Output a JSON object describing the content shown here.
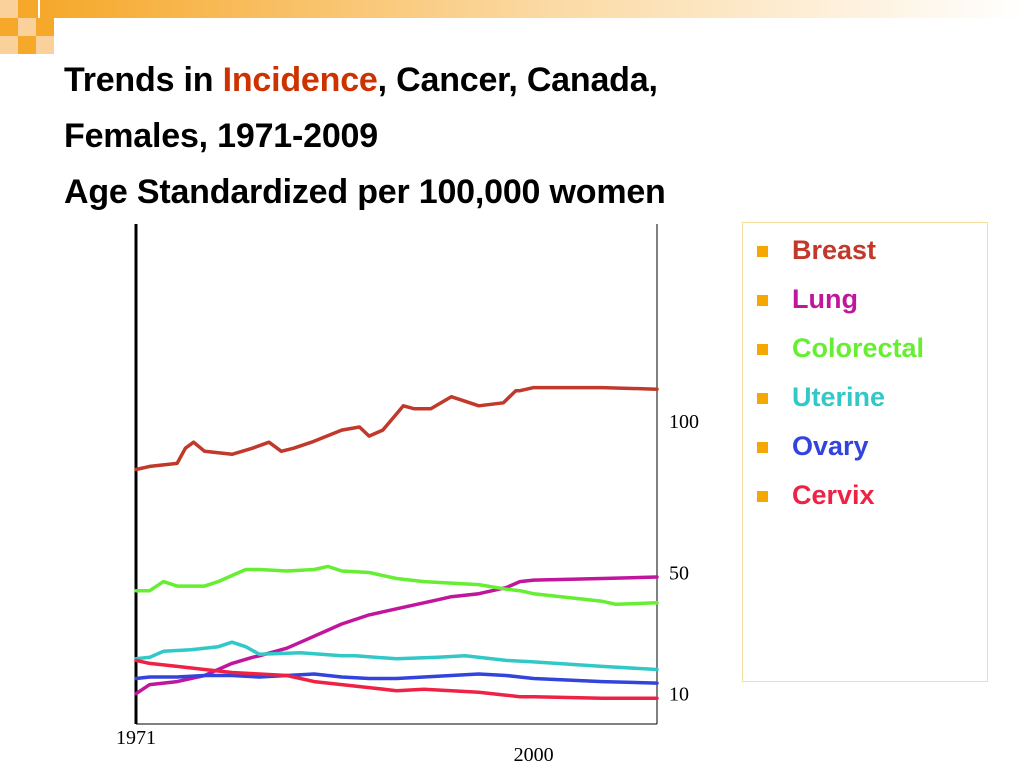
{
  "title": {
    "part1": "Trends in ",
    "highlight": "Incidence",
    "part2": ", Cancer, Canada,",
    "line2": "Females, 1971-2009",
    "line3": "Age Standardized per 100,000 women",
    "highlight_color": "#cc3300"
  },
  "legend": {
    "items": [
      {
        "label": "Breast",
        "color": "#c0392b"
      },
      {
        "label": "Lung",
        "color": "#c0169c"
      },
      {
        "label": "Colorectal",
        "color": "#66ee33"
      },
      {
        "label": "Uterine",
        "color": "#33c8c8"
      },
      {
        "label": "Ovary",
        "color": "#3344dd"
      },
      {
        "label": "Cervix",
        "color": "#ee2244"
      }
    ],
    "bullet_color": "#f5a800"
  },
  "chart_data": {
    "type": "line",
    "title": "",
    "xlabel": "",
    "ylabel": "",
    "xlim": [
      1971,
      2009
    ],
    "ylim": [
      0,
      165
    ],
    "x_tick_labels": [
      {
        "value": 1971,
        "label": "1971"
      },
      {
        "value": 2000,
        "label": "2000"
      }
    ],
    "y_tick_labels": [
      {
        "value": 10,
        "label": "10"
      },
      {
        "value": 50,
        "label": "50"
      },
      {
        "value": 100,
        "label": "100"
      }
    ],
    "grid": false,
    "legend_position": "right",
    "series": [
      {
        "name": "Breast",
        "color": "#c0392b",
        "x": [
          1971,
          1972,
          1974,
          1974.6,
          1975.2,
          1976,
          1978,
          1979.5,
          1980.7,
          1981.6,
          1982.5,
          1983.8,
          1986,
          1987.3,
          1988,
          1989,
          1990.5,
          1991.3,
          1992.5,
          1994,
          1996,
          1997.8,
          1998.7,
          1999,
          2000,
          2001,
          2005,
          2009
        ],
        "y": [
          84,
          85,
          86,
          91,
          93,
          90,
          89,
          91,
          93,
          90,
          91,
          93,
          97,
          98,
          95,
          97,
          105,
          104,
          104,
          108,
          105,
          106,
          110,
          110,
          111,
          111,
          111,
          110.5
        ]
      },
      {
        "name": "Lung",
        "color": "#c0169c",
        "x": [
          1971,
          1972,
          1974,
          1976,
          1978,
          1979.5,
          1980,
          1982,
          1983.5,
          1985,
          1986,
          1988,
          1990,
          1992,
          1993,
          1994,
          1996,
          1998,
          1999,
          2000,
          2005,
          2009
        ],
        "y": [
          10,
          13,
          14,
          16,
          20,
          22,
          22.5,
          25,
          28,
          31,
          33,
          36,
          38,
          40,
          41,
          42,
          43,
          45,
          47,
          47.5,
          48,
          48.5
        ]
      },
      {
        "name": "Colorectal",
        "color": "#66ee33",
        "x": [
          1971,
          1972,
          1973,
          1974,
          1976,
          1977,
          1978,
          1979,
          1980,
          1982,
          1984,
          1985,
          1986,
          1988,
          1990,
          1992,
          1994,
          1996,
          1998,
          1999,
          2000,
          2003,
          2005,
          2006,
          2009
        ],
        "y": [
          44,
          44,
          47,
          45.5,
          45.5,
          47,
          49,
          51,
          51,
          50.5,
          51,
          52,
          50.5,
          50,
          48,
          47,
          46.5,
          46,
          44.5,
          44,
          43,
          41.5,
          40.5,
          39.5,
          40
        ]
      },
      {
        "name": "Uterine",
        "color": "#33c8c8",
        "x": [
          1971,
          1972,
          1973,
          1975,
          1976,
          1977,
          1978,
          1979,
          1980,
          1983,
          1986,
          1987,
          1990,
          1993,
          1995,
          1998,
          2000,
          2005,
          2009
        ],
        "y": [
          21.5,
          22,
          24,
          24.5,
          25,
          25.5,
          27,
          25.5,
          23,
          23.5,
          22.5,
          22.5,
          21.5,
          22,
          22.5,
          21,
          20.5,
          19,
          18
        ]
      },
      {
        "name": "Ovary",
        "color": "#3344dd",
        "x": [
          1971,
          1972,
          1974,
          1976,
          1978,
          1980,
          1982,
          1984,
          1986,
          1988,
          1990,
          1992,
          1994,
          1996,
          1998,
          1999,
          2000,
          2005,
          2009
        ],
        "y": [
          15,
          15.5,
          15.5,
          16,
          16,
          15.5,
          16,
          16.5,
          15.5,
          15,
          15,
          15.5,
          16,
          16.5,
          16,
          15.5,
          15,
          14,
          13.5
        ]
      },
      {
        "name": "Cervix",
        "color": "#ee2244",
        "x": [
          1971,
          1972,
          1974,
          1976,
          1978,
          1980,
          1982,
          1984,
          1986,
          1988,
          1990,
          1992,
          1994,
          1996,
          1998,
          1999,
          2000,
          2005,
          2009
        ],
        "y": [
          21,
          20,
          19,
          18,
          17,
          16.5,
          16,
          14,
          13,
          12,
          11,
          11.5,
          11,
          10.5,
          9.5,
          9,
          9,
          8.5,
          8.5
        ]
      }
    ]
  }
}
